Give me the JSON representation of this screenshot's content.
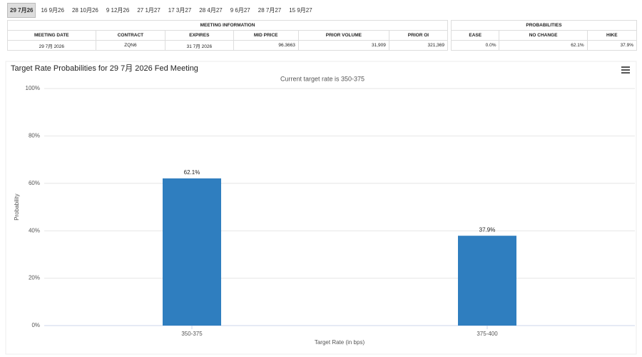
{
  "tabs": [
    "29 7月26",
    "16 9月26",
    "28 10月26",
    "9 12月26",
    "27 1月27",
    "17 3月27",
    "28 4月27",
    "9 6月27",
    "28 7月27",
    "15 9月27"
  ],
  "table": {
    "groups": [
      "MEETING INFORMATION",
      "PROBABILITIES"
    ],
    "columns": [
      "MEETING DATE",
      "CONTRACT",
      "EXPIRES",
      "MID PRICE",
      "PRIOR VOLUME",
      "PRIOR OI",
      "EASE",
      "NO CHANGE",
      "HIKE"
    ],
    "rows": [
      [
        "29 7月 2026",
        "ZQN6",
        "31 7月 2026",
        "96.3663",
        "31,909",
        "321,369",
        "0.0%",
        "62.1%",
        "37.9%"
      ]
    ]
  },
  "chart_data": {
    "type": "bar",
    "title": "Target Rate Probabilities for 29 7月 2026 Fed Meeting",
    "subtitle": "Current target rate is 350-375",
    "x_label": "Target Rate (in bps)",
    "y_label": "Probability",
    "categories": [
      "350-375",
      "375-400"
    ],
    "values": [
      62.1,
      37.9
    ],
    "value_labels": [
      "62.1%",
      "37.9%"
    ],
    "color": "#2f7ebf",
    "ylim": [
      0,
      100
    ],
    "yticks": [
      {
        "value": 0,
        "label": "0%"
      },
      {
        "value": 20,
        "label": "20%"
      },
      {
        "value": 40,
        "label": "40%"
      },
      {
        "value": 60,
        "label": "60%"
      },
      {
        "value": 80,
        "label": "80%"
      },
      {
        "value": 100,
        "label": "100%"
      }
    ],
    "grid": true
  }
}
